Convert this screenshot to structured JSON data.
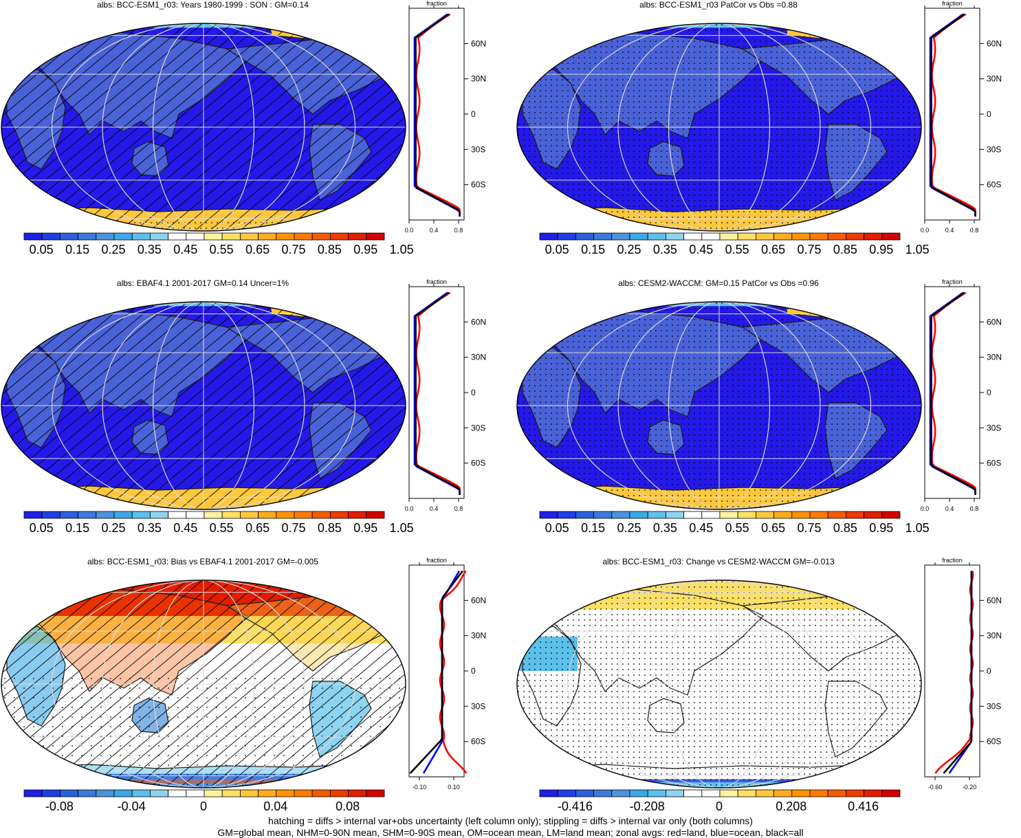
{
  "panels": [
    {
      "id": "model-mean",
      "title": "albs: BCC-ESM1_r03: Years 1980-1999 : SON : GM=0.14",
      "field": "mean",
      "hatching": true,
      "stippling": "polar",
      "colorbar": {
        "colors": [
          "#1f1fe6",
          "#1e3fe6",
          "#2c5fe0",
          "#3d78dc",
          "#4b93dd",
          "#3ca8e6",
          "#5cc0ec",
          "#8fd3ee",
          "#ffffff",
          "#ffffff",
          "#fff3a0",
          "#ffe066",
          "#ffc83c",
          "#ffad1f",
          "#ff9400",
          "#ff7a00",
          "#f85a00",
          "#ee3b00",
          "#e21d00",
          "#d50000"
        ],
        "labels": [
          "0.05",
          "0.15",
          "0.25",
          "0.35",
          "0.45",
          "0.55",
          "0.65",
          "0.75",
          "0.85",
          "0.95",
          "1.05"
        ]
      },
      "zonal": {
        "header": "fraction",
        "yticks": [
          "60N",
          "30N",
          "0",
          "30S",
          "60S"
        ],
        "xticks": [
          "0.0",
          "0.4",
          "0.8"
        ],
        "kind": "mean"
      }
    },
    {
      "id": "model-patcor",
      "title": "albs: BCC-ESM1_r03 PatCor vs Obs =0.88",
      "field": "mean",
      "hatching": false,
      "stippling": "dense",
      "colorbar": {
        "colors": [
          "#1f1fe6",
          "#1e3fe6",
          "#2c5fe0",
          "#3d78dc",
          "#4b93dd",
          "#3ca8e6",
          "#5cc0ec",
          "#8fd3ee",
          "#ffffff",
          "#ffffff",
          "#fff3a0",
          "#ffe066",
          "#ffc83c",
          "#ffad1f",
          "#ff9400",
          "#ff7a00",
          "#f85a00",
          "#ee3b00",
          "#e21d00",
          "#d50000"
        ],
        "labels": [
          "0.05",
          "0.15",
          "0.25",
          "0.35",
          "0.45",
          "0.55",
          "0.65",
          "0.75",
          "0.85",
          "0.95",
          "1.05"
        ]
      },
      "zonal": {
        "header": "fraction",
        "yticks": [
          "60N",
          "30N",
          "0",
          "30S",
          "60S"
        ],
        "xticks": [
          "0.0",
          "0.4",
          "0.8"
        ],
        "kind": "mean"
      }
    },
    {
      "id": "obs-mean",
      "title": "albs: EBAF4.1 2001-2017 GM=0.14 Uncer=1%",
      "field": "mean",
      "hatching": true,
      "stippling": "none",
      "colorbar": {
        "colors": [
          "#1f1fe6",
          "#1e3fe6",
          "#2c5fe0",
          "#3d78dc",
          "#4b93dd",
          "#3ca8e6",
          "#5cc0ec",
          "#8fd3ee",
          "#ffffff",
          "#ffffff",
          "#fff3a0",
          "#ffe066",
          "#ffc83c",
          "#ffad1f",
          "#ff9400",
          "#ff7a00",
          "#f85a00",
          "#ee3b00",
          "#e21d00",
          "#d50000"
        ],
        "labels": [
          "0.05",
          "0.15",
          "0.25",
          "0.35",
          "0.45",
          "0.55",
          "0.65",
          "0.75",
          "0.85",
          "0.95",
          "1.05"
        ]
      },
      "zonal": {
        "header": "fraction",
        "yticks": [
          "60N",
          "30N",
          "0",
          "30S",
          "60S"
        ],
        "xticks": [
          "0.0",
          "0.4",
          "0.8"
        ],
        "kind": "mean"
      }
    },
    {
      "id": "ref-model-mean",
      "title": "albs: CESM2-WACCM: GM=0.15 PatCor vs Obs =0.96",
      "field": "mean",
      "hatching": false,
      "stippling": "dense",
      "colorbar": {
        "colors": [
          "#1f1fe6",
          "#1e3fe6",
          "#2c5fe0",
          "#3d78dc",
          "#4b93dd",
          "#3ca8e6",
          "#5cc0ec",
          "#8fd3ee",
          "#ffffff",
          "#ffffff",
          "#fff3a0",
          "#ffe066",
          "#ffc83c",
          "#ffad1f",
          "#ff9400",
          "#ff7a00",
          "#f85a00",
          "#ee3b00",
          "#e21d00",
          "#d50000"
        ],
        "labels": [
          "0.05",
          "0.15",
          "0.25",
          "0.35",
          "0.45",
          "0.55",
          "0.65",
          "0.75",
          "0.85",
          "0.95",
          "1.05"
        ]
      },
      "zonal": {
        "header": "fraction",
        "yticks": [
          "60N",
          "30N",
          "0",
          "30S",
          "60S"
        ],
        "xticks": [
          "0.0",
          "0.4",
          "0.8"
        ],
        "kind": "mean"
      }
    },
    {
      "id": "bias",
      "title": "albs: BCC-ESM1_r03: Bias vs EBAF4.1 2001-2017  GM=-0.005",
      "field": "bias",
      "hatching": true,
      "stippling": "sparse",
      "colorbar": {
        "colors": [
          "#1f1fe6",
          "#1e3fe6",
          "#2c5fe0",
          "#3d78dc",
          "#4b93dd",
          "#3ca8e6",
          "#5cc0ec",
          "#8fd3ee",
          "#ffffff",
          "#ffffff",
          "#fff3a0",
          "#ffe066",
          "#ffc83c",
          "#ffad1f",
          "#ff9400",
          "#ff7a00",
          "#f85a00",
          "#ee3b00",
          "#e21d00",
          "#d50000"
        ],
        "labels": [
          "-0.08",
          "-0.04",
          "0",
          "0.04",
          "0.08"
        ]
      },
      "zonal": {
        "header": "fraction",
        "yticks": [
          "60N",
          "30N",
          "0",
          "30S",
          "60S"
        ],
        "xticks": [
          "-0.10",
          "0.10"
        ],
        "kind": "bias"
      }
    },
    {
      "id": "change",
      "title": "albs: BCC-ESM1_r03: Change vs CESM2-WACCM GM=-0.013",
      "field": "change",
      "hatching": false,
      "stippling": "dense",
      "colorbar": {
        "colors": [
          "#1f1fe6",
          "#1e3fe6",
          "#2c5fe0",
          "#3d78dc",
          "#4b93dd",
          "#3ca8e6",
          "#5cc0ec",
          "#8fd3ee",
          "#ffffff",
          "#ffffff",
          "#fff3a0",
          "#ffe066",
          "#ffc83c",
          "#ffad1f",
          "#ff9400",
          "#ff7a00",
          "#f85a00",
          "#ee3b00",
          "#e21d00",
          "#d50000"
        ],
        "labels": [
          "-0.416",
          "-0.208",
          "0",
          "0.208",
          "0.416"
        ]
      },
      "zonal": {
        "header": "fraction",
        "yticks": [
          "60N",
          "30N",
          "0",
          "30S",
          "60S"
        ],
        "xticks": [
          "-0.60",
          "-0.20"
        ],
        "kind": "change"
      }
    }
  ],
  "footer": {
    "line1": "hatching = diffs > internal var+obs uncertainty (left column only); stippling = diffs > internal var only (both columns)",
    "line2": "GM=global mean, NHM=0-90N mean, SHM=0-90S mean, OM=ocean mean, LM=land mean; zonal avgs: red=land, blue=ocean, black=all"
  },
  "line_colors": {
    "land": "#ff0000",
    "ocean": "#0000ff",
    "all": "#000000"
  }
}
